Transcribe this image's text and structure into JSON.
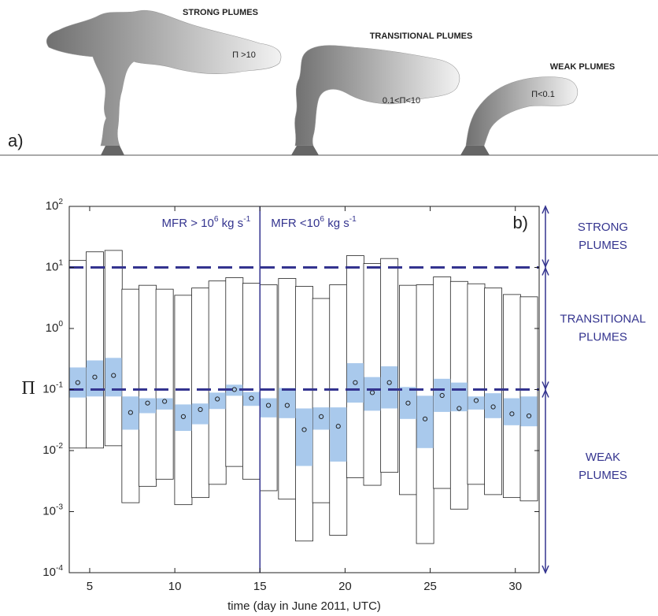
{
  "illustration": {
    "panel_label": "a)",
    "plumes": [
      {
        "title": "STRONG PLUMES",
        "condition": "Π >10"
      },
      {
        "title": "TRANSITIONAL PLUMES",
        "condition": "0.1<Π<10"
      },
      {
        "title": "WEAK PLUMES",
        "condition": "Π<0.1"
      }
    ]
  },
  "chart_data": {
    "type": "box",
    "panel_label": "b)",
    "x_label": "time (day in June 2011, UTC)",
    "y_label": "Π",
    "x": [
      4.3,
      5.3,
      6.4,
      7.4,
      8.4,
      9.4,
      10.5,
      11.5,
      12.5,
      13.5,
      14.5,
      15.5,
      16.6,
      17.6,
      18.6,
      19.6,
      20.6,
      21.6,
      22.6,
      23.7,
      24.7,
      25.7,
      26.7,
      27.7,
      28.7,
      29.8,
      30.8
    ],
    "max": [
      13,
      18,
      19,
      4.4,
      5.1,
      4.4,
      3.5,
      4.6,
      6,
      6.8,
      5.5,
      5.2,
      6.6,
      4.9,
      3.1,
      5.2,
      15.6,
      11.6,
      14,
      5.1,
      5.2,
      7,
      5.9,
      5.4,
      4.6,
      3.6,
      3.3
    ],
    "q3": [
      0.23,
      0.3,
      0.33,
      0.077,
      0.072,
      0.072,
      0.057,
      0.059,
      0.089,
      0.12,
      0.091,
      0.072,
      0.106,
      0.049,
      0.051,
      0.051,
      0.27,
      0.16,
      0.24,
      0.11,
      0.079,
      0.15,
      0.13,
      0.077,
      0.087,
      0.072,
      0.077
    ],
    "median": [
      0.13,
      0.16,
      0.17,
      0.042,
      0.06,
      0.064,
      0.036,
      0.047,
      0.07,
      0.1,
      0.072,
      0.055,
      0.055,
      0.022,
      0.036,
      0.025,
      0.13,
      0.089,
      0.13,
      0.06,
      0.033,
      0.08,
      0.049,
      0.066,
      0.052,
      0.04,
      0.037
    ],
    "q1": [
      0.074,
      0.077,
      0.077,
      0.022,
      0.041,
      0.047,
      0.021,
      0.027,
      0.048,
      0.079,
      0.054,
      0.035,
      0.034,
      0.0056,
      0.022,
      0.0066,
      0.061,
      0.045,
      0.049,
      0.033,
      0.011,
      0.043,
      0.044,
      0.047,
      0.034,
      0.026,
      0.025
    ],
    "min": [
      0.011,
      0.011,
      0.012,
      0.0014,
      0.0026,
      0.0034,
      0.0013,
      0.0017,
      0.0028,
      0.0055,
      0.0034,
      0.0022,
      0.0016,
      0.00033,
      0.0014,
      0.00041,
      0.0036,
      0.0027,
      0.0044,
      0.0019,
      0.0003,
      0.0024,
      0.0011,
      0.0028,
      0.0019,
      0.0017,
      0.0015
    ],
    "xlim": [
      3.8,
      31.4
    ],
    "xticks": [
      5,
      10,
      15,
      20,
      25,
      30
    ],
    "ylim": [
      0.0001,
      100
    ],
    "log_y": true,
    "yticks": [
      {
        "value": 0.0001,
        "label": "10^-4"
      },
      {
        "value": 0.001,
        "label": "10^-3"
      },
      {
        "value": 0.01,
        "label": "10^-2"
      },
      {
        "value": 0.1,
        "label": "10^-1"
      },
      {
        "value": 1,
        "label": "10^0"
      },
      {
        "value": 10,
        "label": "10^1"
      },
      {
        "value": 100,
        "label": "10^2"
      }
    ],
    "thresholds": [
      10,
      0.1
    ],
    "divider_x": 15,
    "annotations": [
      "MFR > 10^6 kg s^-1",
      "MFR <10^6 kg s^-1"
    ],
    "regions": [
      [
        "STRONG",
        "PLUMES"
      ],
      [
        "TRANSITIONAL",
        "PLUMES"
      ],
      [
        "WEAK",
        "PLUMES"
      ]
    ],
    "box_color": "#a9c9ec",
    "accent_color": "#34348f"
  }
}
